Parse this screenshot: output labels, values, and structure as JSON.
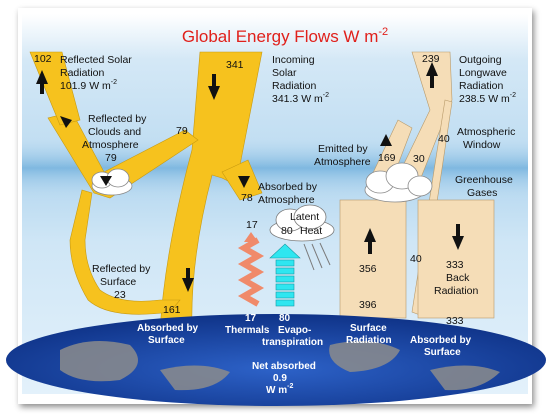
{
  "title": "Global Energy Flows  W m",
  "title_sup": "-2",
  "colors": {
    "title": "#e0201b",
    "sky_top": "#b9d9f0",
    "sky_band": "#8ec3e6",
    "solar": "#f6c21e",
    "longwave": "#f5ddb7",
    "earth_ocean": "#1745a8",
    "land": "#8c8c8c",
    "thermals": "#f08a6a",
    "evapo": "#2fe6f0"
  },
  "labels": {
    "reflected_solar": [
      "Reflected Solar",
      "Radiation"
    ],
    "reflected_solar_value": "101.9 W m",
    "incoming_solar": [
      "Incoming",
      "Solar",
      "Radiation"
    ],
    "incoming_solar_value": "341.3 W m",
    "outgoing_longwave": [
      "Outgoing",
      "Longwave",
      "Radiation"
    ],
    "outgoing_longwave_value": "238.5 W m",
    "reflected_clouds": [
      "Reflected by",
      "Clouds and",
      "Atmosphere"
    ],
    "reflected_surface": [
      "Reflected by",
      "Surface"
    ],
    "absorbed_atmosphere": [
      "Absorbed by",
      "Atmosphere"
    ],
    "emitted_atmosphere": [
      "Emitted by",
      "Atmosphere"
    ],
    "atmospheric_window": [
      "Atmospheric",
      "Window"
    ],
    "greenhouse_gases": [
      "Greenhouse",
      "Gases"
    ],
    "latent_heat": [
      "Latent",
      "Heat"
    ],
    "back_radiation": [
      "Back",
      "Radiation"
    ],
    "absorbed_surface_left": [
      "Absorbed by",
      "Surface"
    ],
    "thermals": "Thermals",
    "evapotranspiration": [
      "Evapo-",
      "transpiration"
    ],
    "surface_radiation": [
      "Surface",
      "Radiation"
    ],
    "absorbed_surface_right": [
      "Absorbed by",
      "Surface"
    ],
    "net_absorbed": [
      "Net absorbed",
      "0.9",
      "W m"
    ],
    "unit_sup": "-2"
  },
  "values": {
    "reflected_total": "102",
    "incoming": "341",
    "outgoing": "239",
    "reflected_clouds": "79",
    "reflected_clouds_arrow": "79",
    "reflected_surface": "23",
    "absorbed_atmosphere": "78",
    "absorbed_surface": "161",
    "emitted_atmosphere": "169",
    "emitted_clouds": "30",
    "window": "40",
    "thermals_top": "17",
    "thermals_bottom": "17",
    "latent": "80",
    "evapo": "80",
    "surface_up": "356",
    "surface_total": "396",
    "window_low": "40",
    "back": "333",
    "back_absorbed": "333"
  }
}
